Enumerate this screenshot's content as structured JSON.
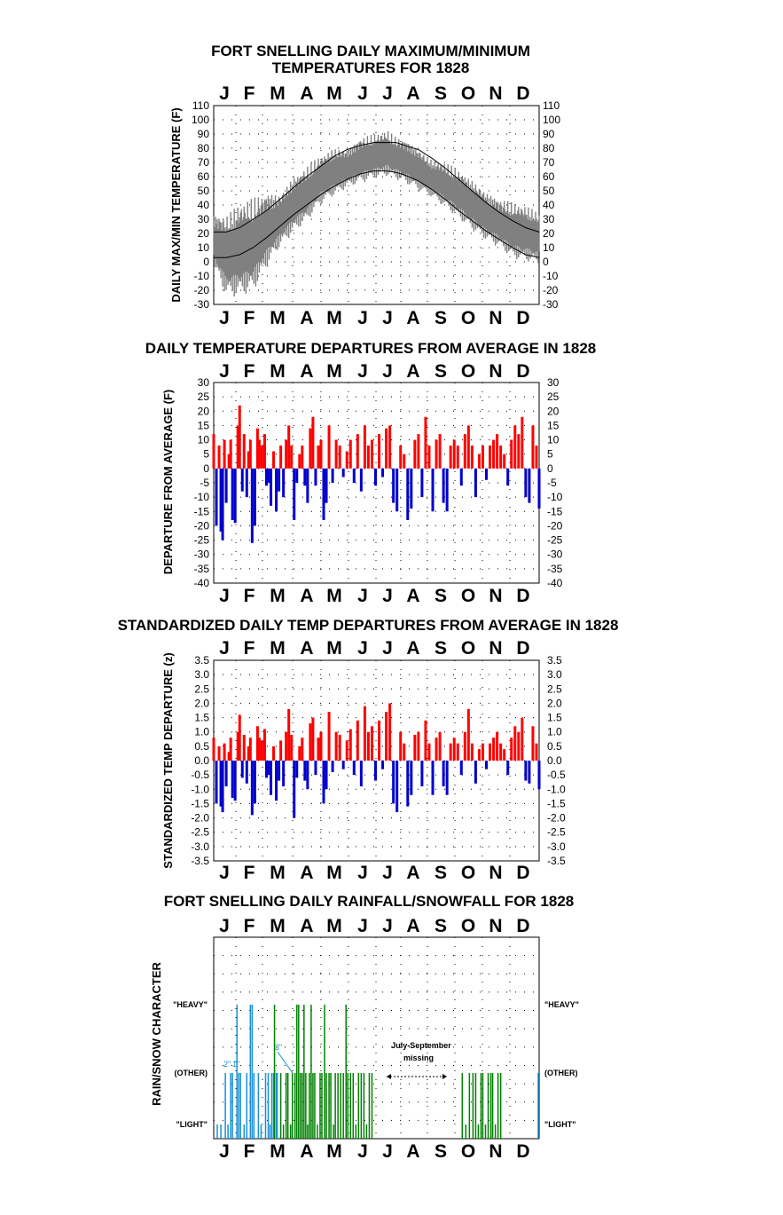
{
  "colors": {
    "max_min_series": "#808080",
    "average_line": "#000000",
    "positive": "#ff0000",
    "negative": "#0000cc",
    "rain": "#008000",
    "snow": "#1a8fd4",
    "grid": "#000000"
  },
  "chart_data": [
    {
      "type": "line",
      "title_line1": "FORT SNELLING DAILY MAXIMUM/MINIMUM",
      "title_line2": "TEMPERATURES FOR 1828",
      "ylabel": "DAILY MAX/MIN TEMPERATURE (F)",
      "months": [
        "J",
        "F",
        "M",
        "A",
        "M",
        "J",
        "J",
        "A",
        "S",
        "O",
        "N",
        "D"
      ],
      "ylim": [
        -30,
        110
      ],
      "yticks": [
        "110",
        "100",
        "90",
        "80",
        "70",
        "60",
        "50",
        "40",
        "30",
        "20",
        "10",
        "0",
        "-10",
        "-20",
        "-30"
      ],
      "average_max": {
        "x": [
          1,
          15,
          30,
          45,
          60,
          75,
          90,
          105,
          120,
          135,
          150,
          165,
          180,
          195,
          205,
          215,
          230,
          245,
          260,
          275,
          290,
          305,
          320,
          335,
          350,
          365
        ],
        "y": [
          21,
          21,
          24,
          30,
          36,
          44,
          52,
          60,
          67,
          74,
          79,
          82,
          84,
          84,
          84,
          82,
          79,
          73,
          66,
          58,
          50,
          42,
          35,
          29,
          24,
          21
        ]
      },
      "average_min": {
        "x": [
          1,
          15,
          30,
          45,
          60,
          75,
          90,
          105,
          120,
          135,
          150,
          165,
          180,
          195,
          205,
          215,
          230,
          245,
          260,
          275,
          290,
          305,
          320,
          335,
          350,
          365
        ],
        "y": [
          3,
          3,
          5,
          10,
          17,
          25,
          33,
          40,
          47,
          53,
          58,
          62,
          64,
          64,
          63,
          61,
          57,
          51,
          44,
          36,
          29,
          22,
          16,
          10,
          5,
          3
        ]
      },
      "daily_range_envelope": {
        "x": [
          1,
          15,
          30,
          45,
          60,
          75,
          90,
          105,
          120,
          135,
          150,
          165,
          180,
          195,
          205,
          215,
          230,
          245,
          260,
          275,
          290,
          305,
          320,
          335,
          350,
          365
        ],
        "max": [
          35,
          33,
          42,
          45,
          50,
          48,
          60,
          67,
          75,
          80,
          80,
          88,
          90,
          93,
          88,
          87,
          80,
          72,
          70,
          65,
          58,
          50,
          45,
          42,
          40,
          35
        ],
        "min": [
          -5,
          -25,
          -25,
          -22,
          -5,
          10,
          20,
          28,
          40,
          46,
          52,
          55,
          58,
          60,
          58,
          55,
          50,
          45,
          38,
          30,
          22,
          15,
          10,
          2,
          0,
          -2
        ]
      }
    },
    {
      "type": "bar",
      "title": "DAILY TEMPERATURE DEPARTURES FROM AVERAGE IN 1828",
      "ylabel": "DEPARTURE FROM AVERAGE (F)",
      "months": [
        "J",
        "F",
        "M",
        "A",
        "M",
        "J",
        "J",
        "A",
        "S",
        "O",
        "N",
        "D"
      ],
      "ylim": [
        -40,
        30
      ],
      "yticks": [
        "30",
        "25",
        "20",
        "15",
        "10",
        "5",
        "0",
        "-5",
        "-10",
        "-15",
        "-20",
        "-25",
        "-30",
        "-35",
        "-40"
      ],
      "day": [
        1,
        4,
        7,
        9,
        11,
        13,
        15,
        18,
        20,
        22,
        25,
        28,
        30,
        33,
        35,
        38,
        40,
        42,
        44,
        47,
        50,
        52,
        55,
        58,
        60,
        62,
        65,
        68,
        71,
        74,
        76,
        79,
        82,
        85,
        88,
        91,
        94,
        97,
        100,
        103,
        106,
        109,
        112,
        115,
        118,
        121,
        124,
        127,
        130,
        134,
        138,
        142,
        146,
        150,
        154,
        158,
        162,
        166,
        170,
        174,
        178,
        182,
        186,
        190,
        194,
        198,
        202,
        206,
        210,
        214,
        218,
        222,
        226,
        230,
        234,
        238,
        242,
        246,
        250,
        254,
        258,
        262,
        266,
        270,
        274,
        278,
        282,
        286,
        290,
        294,
        298,
        302,
        306,
        310,
        314,
        318,
        322,
        326,
        330,
        334,
        338,
        342,
        346,
        350,
        354,
        358,
        362,
        365
      ],
      "value": [
        12,
        -20,
        8,
        -22,
        -25,
        10,
        -12,
        5,
        10,
        -18,
        -19,
        15,
        22,
        -8,
        12,
        -10,
        6,
        10,
        -26,
        -20,
        14,
        10,
        8,
        12,
        -6,
        -5,
        -13,
        6,
        -15,
        -8,
        8,
        -10,
        10,
        15,
        8,
        -18,
        -5,
        5,
        8,
        -6,
        -12,
        14,
        18,
        -6,
        8,
        10,
        -18,
        -12,
        15,
        -5,
        10,
        8,
        -3,
        6,
        10,
        -5,
        12,
        -8,
        15,
        8,
        10,
        -6,
        12,
        -3,
        14,
        15,
        -12,
        -15,
        8,
        5,
        -18,
        -14,
        10,
        12,
        -10,
        18,
        8,
        -15,
        10,
        12,
        -12,
        -15,
        8,
        10,
        8,
        -6,
        12,
        15,
        8,
        -10,
        5,
        8,
        -4,
        8,
        10,
        12,
        8,
        5,
        -6,
        10,
        15,
        12,
        18,
        -10,
        -12,
        15,
        8,
        -14,
        10
      ]
    },
    {
      "type": "bar",
      "title": "STANDARDIZED DAILY TEMP DEPARTURES FROM AVERAGE IN 1828",
      "ylabel": "STANDARDIZED TEMP DEPARTURE (z)",
      "months": [
        "J",
        "F",
        "M",
        "A",
        "M",
        "J",
        "J",
        "A",
        "S",
        "O",
        "N",
        "D"
      ],
      "ylim": [
        -3.5,
        3.5
      ],
      "yticks": [
        "3.5",
        "3.0",
        "2.5",
        "2.0",
        "1.5",
        "1.0",
        "0.5",
        "0.0",
        "-0.5",
        "-1.0",
        "-1.5",
        "-2.0",
        "-2.5",
        "-3.0",
        "-3.5"
      ],
      "day": [
        1,
        4,
        7,
        9,
        11,
        13,
        15,
        18,
        20,
        22,
        25,
        28,
        30,
        33,
        35,
        38,
        40,
        42,
        44,
        47,
        50,
        52,
        55,
        58,
        60,
        62,
        65,
        68,
        71,
        74,
        76,
        79,
        82,
        85,
        88,
        91,
        94,
        97,
        100,
        103,
        106,
        109,
        112,
        115,
        118,
        121,
        124,
        127,
        130,
        134,
        138,
        142,
        146,
        150,
        154,
        158,
        162,
        166,
        170,
        174,
        178,
        182,
        186,
        190,
        194,
        198,
        202,
        206,
        210,
        214,
        218,
        222,
        226,
        230,
        234,
        238,
        242,
        246,
        250,
        254,
        258,
        262,
        266,
        270,
        274,
        278,
        282,
        286,
        290,
        294,
        298,
        302,
        306,
        310,
        314,
        318,
        322,
        326,
        330,
        334,
        338,
        342,
        346,
        350,
        354,
        358,
        362,
        365
      ],
      "value": [
        0.8,
        -1.5,
        0.5,
        -1.6,
        -1.8,
        0.6,
        -0.9,
        0.3,
        0.8,
        -1.3,
        -1.4,
        1.0,
        1.6,
        -0.6,
        0.9,
        -0.8,
        0.5,
        0.8,
        -1.9,
        -1.5,
        1.2,
        0.8,
        0.7,
        1.1,
        -0.6,
        -0.5,
        -1.2,
        0.5,
        -1.4,
        -0.7,
        0.7,
        -0.9,
        1.0,
        1.8,
        0.9,
        -2.0,
        -0.6,
        0.5,
        0.8,
        -0.7,
        -1.0,
        1.3,
        1.5,
        -0.5,
        0.8,
        1.0,
        -1.5,
        -1.0,
        1.7,
        -0.4,
        1.0,
        0.9,
        -0.3,
        0.7,
        1.1,
        -0.5,
        1.4,
        -0.9,
        1.9,
        1.0,
        1.2,
        -0.7,
        1.4,
        -0.3,
        1.7,
        2.0,
        -1.5,
        -1.8,
        1.0,
        0.6,
        -1.6,
        -1.2,
        0.9,
        1.0,
        -0.9,
        1.4,
        0.6,
        -1.2,
        0.8,
        1.0,
        -0.9,
        -1.2,
        0.6,
        0.8,
        0.6,
        -0.5,
        1.0,
        1.8,
        0.6,
        -0.8,
        0.4,
        0.6,
        -0.3,
        0.6,
        0.8,
        1.0,
        0.6,
        0.4,
        -0.5,
        0.8,
        1.2,
        1.0,
        1.5,
        -0.7,
        -0.8,
        1.2,
        0.6,
        -1.0,
        0.8
      ]
    },
    {
      "type": "bar",
      "title": "FORT SNELLING DAILY RAINFALL/SNOWFALL FOR 1828",
      "ylabel": "RAIN/SNOW CHARACTER",
      "months": [
        "J",
        "F",
        "M",
        "A",
        "M",
        "J",
        "J",
        "A",
        "S",
        "O",
        "N",
        "D"
      ],
      "categories": [
        "\"LIGHT\"",
        "(OTHER)",
        "\"HEAVY\""
      ],
      "annotation_gap": "July-September",
      "annotation_gap2": "missing",
      "snow_depth_labels": [
        "2\"",
        "1\"",
        "3\""
      ],
      "events": [
        {
          "day": 5,
          "level": 1,
          "kind": "snow"
        },
        {
          "day": 9,
          "level": 1,
          "kind": "snow"
        },
        {
          "day": 14,
          "level": 2,
          "kind": "snow"
        },
        {
          "day": 17,
          "level": 1,
          "kind": "snow"
        },
        {
          "day": 20,
          "level": 2,
          "kind": "snow"
        },
        {
          "day": 22,
          "level": 2,
          "kind": "snow"
        },
        {
          "day": 27,
          "level": 3,
          "kind": "snow"
        },
        {
          "day": 29,
          "level": 2,
          "kind": "snow"
        },
        {
          "day": 31,
          "level": 2,
          "kind": "snow"
        },
        {
          "day": 35,
          "level": 1,
          "kind": "snow"
        },
        {
          "day": 38,
          "level": 2,
          "kind": "snow"
        },
        {
          "day": 42,
          "level": 3,
          "kind": "snow"
        },
        {
          "day": 44,
          "level": 3,
          "kind": "snow"
        },
        {
          "day": 46,
          "level": 2,
          "kind": "snow"
        },
        {
          "day": 51,
          "level": 2,
          "kind": "snow"
        },
        {
          "day": 54,
          "level": 1,
          "kind": "snow"
        },
        {
          "day": 59,
          "level": 2,
          "kind": "snow"
        },
        {
          "day": 62,
          "level": 2,
          "kind": "snow"
        },
        {
          "day": 64,
          "level": 1,
          "kind": "snow"
        },
        {
          "day": 66,
          "level": 2,
          "kind": "snow"
        },
        {
          "day": 68,
          "level": 2,
          "kind": "snow"
        },
        {
          "day": 71,
          "level": 2,
          "kind": "snow"
        },
        {
          "day": 72,
          "level": 2,
          "kind": "snow"
        },
        {
          "day": 69,
          "level": 3,
          "kind": "rain"
        },
        {
          "day": 76,
          "level": 2,
          "kind": "rain"
        },
        {
          "day": 79,
          "level": 1,
          "kind": "rain"
        },
        {
          "day": 82,
          "level": 2,
          "kind": "rain"
        },
        {
          "day": 84,
          "level": 2,
          "kind": "rain"
        },
        {
          "day": 87,
          "level": 1,
          "kind": "rain"
        },
        {
          "day": 89,
          "level": 2,
          "kind": "rain"
        },
        {
          "day": 92,
          "level": 2,
          "kind": "rain"
        },
        {
          "day": 94,
          "level": 3,
          "kind": "rain"
        },
        {
          "day": 96,
          "level": 3,
          "kind": "rain"
        },
        {
          "day": 98,
          "level": 2,
          "kind": "rain"
        },
        {
          "day": 100,
          "level": 2,
          "kind": "rain"
        },
        {
          "day": 102,
          "level": 3,
          "kind": "rain"
        },
        {
          "day": 104,
          "level": 2,
          "kind": "rain"
        },
        {
          "day": 106,
          "level": 1,
          "kind": "rain"
        },
        {
          "day": 108,
          "level": 2,
          "kind": "rain"
        },
        {
          "day": 110,
          "level": 3,
          "kind": "rain"
        },
        {
          "day": 112,
          "level": 2,
          "kind": "rain"
        },
        {
          "day": 114,
          "level": 2,
          "kind": "rain"
        },
        {
          "day": 117,
          "level": 1,
          "kind": "rain"
        },
        {
          "day": 120,
          "level": 2,
          "kind": "rain"
        },
        {
          "day": 122,
          "level": 2,
          "kind": "rain"
        },
        {
          "day": 125,
          "level": 3,
          "kind": "rain"
        },
        {
          "day": 127,
          "level": 2,
          "kind": "rain"
        },
        {
          "day": 130,
          "level": 2,
          "kind": "rain"
        },
        {
          "day": 132,
          "level": 2,
          "kind": "rain"
        },
        {
          "day": 135,
          "level": 1,
          "kind": "rain"
        },
        {
          "day": 137,
          "level": 2,
          "kind": "rain"
        },
        {
          "day": 140,
          "level": 2,
          "kind": "rain"
        },
        {
          "day": 143,
          "level": 2,
          "kind": "rain"
        },
        {
          "day": 146,
          "level": 2,
          "kind": "rain"
        },
        {
          "day": 149,
          "level": 3,
          "kind": "rain"
        },
        {
          "day": 151,
          "level": 2,
          "kind": "rain"
        },
        {
          "day": 154,
          "level": 2,
          "kind": "rain"
        },
        {
          "day": 157,
          "level": 2,
          "kind": "rain"
        },
        {
          "day": 160,
          "level": 1,
          "kind": "rain"
        },
        {
          "day": 163,
          "level": 2,
          "kind": "rain"
        },
        {
          "day": 166,
          "level": 2,
          "kind": "rain"
        },
        {
          "day": 169,
          "level": 2,
          "kind": "rain"
        },
        {
          "day": 172,
          "level": 1,
          "kind": "rain"
        },
        {
          "day": 175,
          "level": 2,
          "kind": "rain"
        },
        {
          "day": 178,
          "level": 2,
          "kind": "rain"
        },
        {
          "day": 279,
          "level": 2,
          "kind": "rain"
        },
        {
          "day": 283,
          "level": 1,
          "kind": "rain"
        },
        {
          "day": 287,
          "level": 2,
          "kind": "rain"
        },
        {
          "day": 291,
          "level": 2,
          "kind": "rain"
        },
        {
          "day": 294,
          "level": 2,
          "kind": "rain"
        },
        {
          "day": 297,
          "level": 1,
          "kind": "rain"
        },
        {
          "day": 300,
          "level": 2,
          "kind": "rain"
        },
        {
          "day": 302,
          "level": 2,
          "kind": "rain"
        },
        {
          "day": 305,
          "level": 1,
          "kind": "rain"
        },
        {
          "day": 308,
          "level": 2,
          "kind": "rain"
        },
        {
          "day": 311,
          "level": 2,
          "kind": "rain"
        },
        {
          "day": 313,
          "level": 2,
          "kind": "rain"
        },
        {
          "day": 316,
          "level": 1,
          "kind": "rain"
        },
        {
          "day": 319,
          "level": 2,
          "kind": "rain"
        },
        {
          "day": 322,
          "level": 2,
          "kind": "rain"
        },
        {
          "day": 364,
          "level": 2,
          "kind": "snow"
        }
      ]
    }
  ]
}
